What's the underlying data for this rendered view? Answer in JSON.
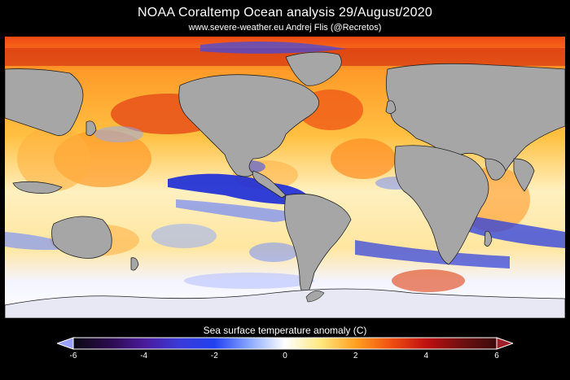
{
  "header": {
    "title": "NOAA Coraltemp Ocean analysis     29/August/2020",
    "subtitle": "www.severe-weather.eu   Andrej Flis (@Recretos)"
  },
  "legend": {
    "label": "Sea surface temperature anomaly (C)",
    "min": -6,
    "max": 6,
    "ticks": [
      "-6",
      "-4",
      "-2",
      "0",
      "2",
      "4",
      "6"
    ],
    "stops": [
      {
        "value": -6,
        "color": "#0a0a12"
      },
      {
        "value": -5,
        "color": "#2a0a4a"
      },
      {
        "value": -4,
        "color": "#4a1a9a"
      },
      {
        "value": -3,
        "color": "#3a3ad8"
      },
      {
        "value": -2,
        "color": "#2040f0"
      },
      {
        "value": -1,
        "color": "#8aa8ff"
      },
      {
        "value": 0,
        "color": "#ffffff"
      },
      {
        "value": 1,
        "color": "#ffe880"
      },
      {
        "value": 2,
        "color": "#ffa020"
      },
      {
        "value": 3,
        "color": "#f05010"
      },
      {
        "value": 4,
        "color": "#c01010"
      },
      {
        "value": 5,
        "color": "#701010"
      },
      {
        "value": 6,
        "color": "#3a0a0a"
      }
    ]
  },
  "colors": {
    "land": "#a6a6a6",
    "ice": "#e8e8f4",
    "background": "#000000",
    "coast": "#222222"
  }
}
